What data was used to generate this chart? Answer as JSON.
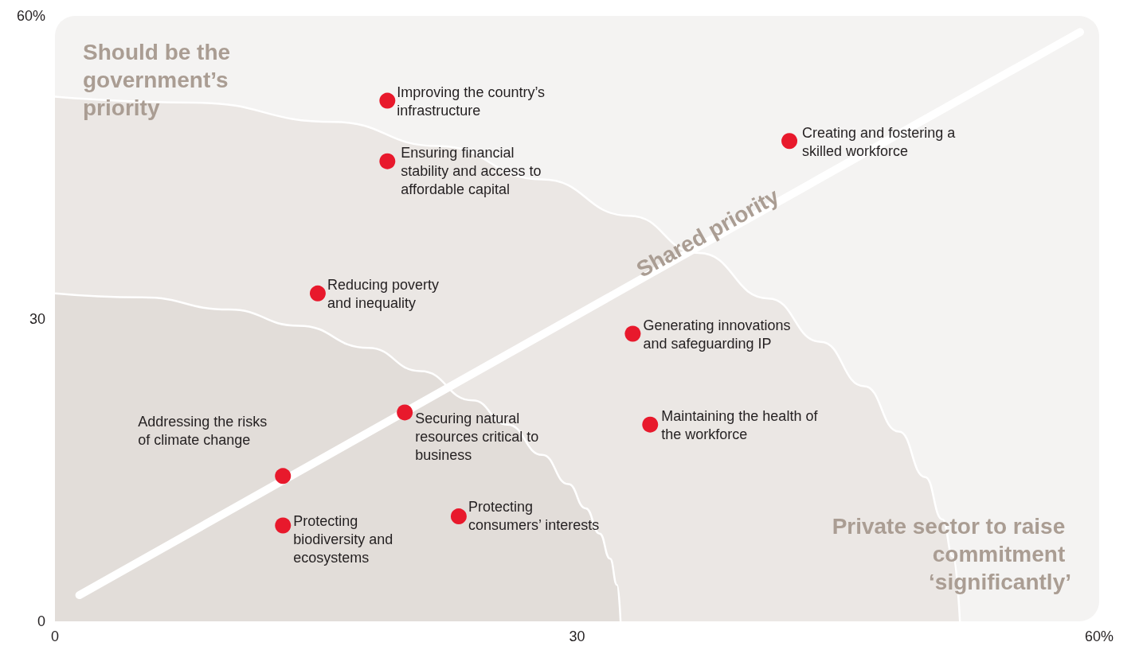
{
  "chart_data": {
    "type": "scatter",
    "xlim": [
      0,
      60
    ],
    "ylim": [
      0,
      60
    ],
    "xticks": [
      0,
      30,
      {
        "value": 60,
        "label": "60%"
      }
    ],
    "yticks": [
      0,
      30,
      {
        "value": 60,
        "label": "60%"
      }
    ],
    "grid": false,
    "legend": false,
    "marker": "circle",
    "annotations": [
      "Should be the government’s priority",
      "Private sector to raise commitment ‘significantly’",
      "Shared priority"
    ],
    "series": [
      {
        "type": "area",
        "color": "#ebe7e4",
        "marker": "none",
        "x": [
          0,
          8,
          16,
          22,
          28,
          33,
          37,
          41,
          44,
          46.5,
          48.5,
          50,
          51,
          51.6,
          52
        ],
        "values": [
          52,
          51.4,
          49.5,
          47.1,
          43.8,
          40.2,
          36.5,
          32.0,
          27.7,
          23.3,
          18.8,
          14.3,
          10.1,
          6.4,
          0
        ]
      },
      {
        "type": "area",
        "color": "#e2ddd9",
        "marker": "none",
        "x": [
          0,
          5,
          10,
          14,
          18,
          21,
          24,
          26,
          28,
          29.5,
          30.5,
          31.3,
          31.9,
          32.3,
          32.5
        ],
        "values": [
          32.5,
          32.1,
          30.9,
          29.3,
          27.1,
          24.8,
          21.9,
          19.5,
          16.5,
          13.6,
          11.2,
          8.7,
          6.2,
          3.6,
          0
        ]
      },
      {
        "type": "line",
        "color": "#ffffff",
        "marker": "none",
        "x": [
          1.4,
          58.9
        ],
        "values": [
          2.6,
          58.4
        ]
      },
      {
        "name": "Improving the country’s infrastructure",
        "color": "#e8192c",
        "x": [
          19.1
        ],
        "values": [
          51.6
        ]
      },
      {
        "name": "Ensuring financial stability and access to affordable capital",
        "color": "#e8192c",
        "x": [
          19.1
        ],
        "values": [
          45.6
        ]
      },
      {
        "name": "Creating and fostering a skilled workforce",
        "color": "#e8192c",
        "x": [
          42.2
        ],
        "values": [
          47.6
        ]
      },
      {
        "name": "Reducing poverty and inequality",
        "color": "#e8192c",
        "x": [
          15.1
        ],
        "values": [
          32.5
        ]
      },
      {
        "name": "Generating innovations and safeguarding IP",
        "color": "#e8192c",
        "x": [
          33.2
        ],
        "values": [
          28.5
        ]
      },
      {
        "name": "Maintaining the health of the workforce",
        "color": "#e8192c",
        "x": [
          34.2
        ],
        "values": [
          19.5
        ]
      },
      {
        "name": "Securing natural resources critical to business",
        "color": "#e8192c",
        "x": [
          20.1
        ],
        "values": [
          20.7
        ]
      },
      {
        "name": "Addressing the risks of climate change",
        "color": "#e8192c",
        "x": [
          13.1
        ],
        "values": [
          14.4
        ]
      },
      {
        "name": "Protecting biodiversity and ecosystems",
        "color": "#e8192c",
        "x": [
          13.1
        ],
        "values": [
          9.5
        ]
      },
      {
        "name": "Protecting consumers’ interests",
        "color": "#e8192c",
        "x": [
          23.2
        ],
        "values": [
          10.4
        ]
      }
    ]
  }
}
